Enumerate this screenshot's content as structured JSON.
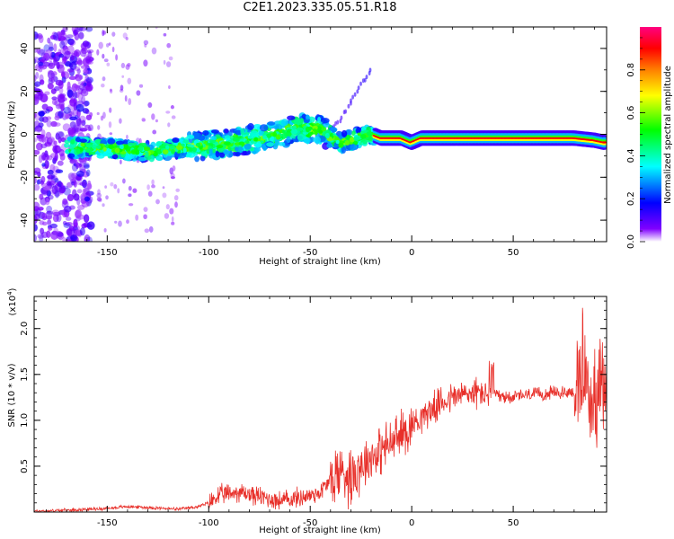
{
  "title": "C2E1.2023.335.05.51.R18",
  "chart_data": [
    {
      "type": "heatmap",
      "xlabel": "Height of straight line (km)",
      "ylabel": "Frequency (Hz)",
      "xlim": [
        -186,
        96
      ],
      "ylim": [
        -50,
        50
      ],
      "xticks": [
        -150,
        -100,
        -50,
        0,
        50
      ],
      "yticks": [
        -40,
        -20,
        0,
        20,
        40
      ],
      "xtick_labels": [
        "-150",
        "-100",
        "-50",
        "0",
        "50"
      ],
      "ytick_labels": [
        "-40",
        "-20",
        "0",
        "20",
        "40"
      ],
      "colorbar": {
        "label": "Normalized spectral amplitude",
        "range": [
          0,
          1
        ],
        "ticks": [
          0,
          0.2,
          0.4,
          0.6,
          0.8
        ],
        "tick_labels": [
          "0.0",
          "0.2",
          "0.4",
          "0.6",
          "0.8"
        ],
        "colors": [
          "#ffffff",
          "#8000ff",
          "#0000ff",
          "#00ffff",
          "#00ff00",
          "#ffff00",
          "#ff8000",
          "#ff0000",
          "#ff0080"
        ]
      },
      "ridge": {
        "x": [
          -170,
          -150,
          -130,
          -110,
          -90,
          -70,
          -55,
          -45,
          -35,
          -25,
          -20,
          -15,
          -5,
          0,
          5,
          30,
          60,
          80,
          90,
          95
        ],
        "y": [
          -6,
          -6.5,
          -8,
          -6,
          -4,
          -1,
          3,
          2,
          -4,
          -1,
          0,
          -2,
          -2,
          -4,
          -2,
          -2,
          -2,
          -2,
          -3,
          -4
        ]
      }
    },
    {
      "type": "line",
      "xlabel": "Height of straight line (km)",
      "ylabel": "SNR (10 * v/v)",
      "y_multiplier": "(x10",
      "y_multiplier_exp": "4",
      "y_multiplier_close": ")",
      "xlim": [
        -186,
        96
      ],
      "ylim": [
        0,
        2.35
      ],
      "xticks": [
        -150,
        -100,
        -50,
        0,
        50
      ],
      "yticks": [
        0.5,
        1.0,
        1.5,
        2.0
      ],
      "xtick_labels": [
        "-150",
        "-100",
        "-50",
        "0",
        "50"
      ],
      "ytick_labels": [
        "0.5",
        "1.0",
        "1.5",
        "2.0"
      ],
      "line_color": "#e8302a",
      "series": [
        {
          "x": [
            -186,
            -170,
            -150,
            -140,
            -130,
            -115,
            -105,
            -100,
            -95,
            -85,
            -75,
            -65,
            -50,
            -45,
            -40,
            -35,
            -30,
            -25,
            -20,
            -15,
            -10,
            -5,
            0,
            5,
            10,
            15,
            20,
            25,
            30,
            35,
            40,
            45,
            50,
            60,
            70,
            75,
            80,
            84,
            86,
            88,
            90,
            92,
            96
          ],
          "y": [
            0.01,
            0.02,
            0.04,
            0.06,
            0.05,
            0.03,
            0.06,
            0.1,
            0.18,
            0.22,
            0.17,
            0.12,
            0.18,
            0.22,
            0.35,
            0.45,
            0.4,
            0.52,
            0.6,
            0.68,
            0.75,
            0.85,
            0.95,
            1.05,
            1.12,
            1.2,
            1.25,
            1.28,
            1.3,
            1.3,
            1.27,
            1.25,
            1.26,
            1.28,
            1.3,
            1.3,
            1.32,
            1.3,
            1.45,
            1.2,
            1.25,
            1.3,
            1.35
          ]
        }
      ]
    }
  ]
}
